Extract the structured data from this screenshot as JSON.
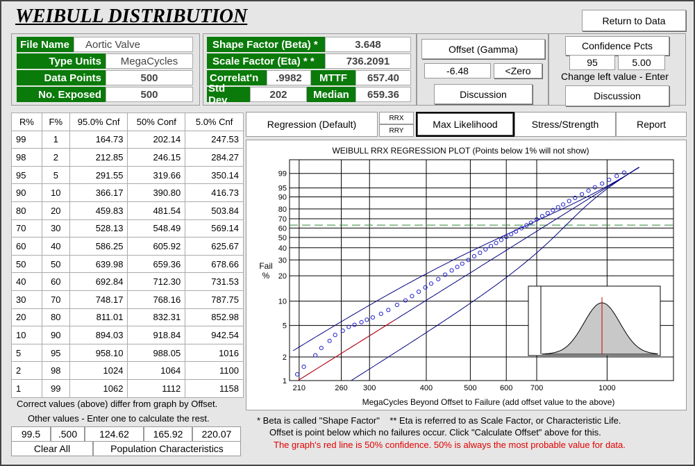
{
  "app": {
    "title": "WEIBULL DISTRIBUTION",
    "return_button": "Return to Data"
  },
  "info": {
    "file_name_label": "File Name",
    "file_name": "Aortic Valve",
    "type_units_label": "Type Units",
    "type_units": "MegaCycles",
    "data_points_label": "Data Points",
    "data_points": "500",
    "no_exposed_label": "No. Exposed",
    "no_exposed": "500"
  },
  "params": {
    "shape_label": "Shape Factor (Beta) *",
    "shape": "3.648",
    "scale_label": "Scale Factor (Eta) * *",
    "scale": "736.2091",
    "correl_label": "Correlat'n",
    "correl": ".9982",
    "mttf_label": "MTTF",
    "mttf": "657.40",
    "stddev_label": "Std Dev",
    "stddev": "202",
    "median_label": "Median",
    "median": "659.36"
  },
  "offset": {
    "button": "Offset (Gamma)",
    "value": "-6.48",
    "zero_button": "<Zero",
    "discussion_button": "Discussion"
  },
  "confidence": {
    "button": "Confidence Pcts",
    "left": "95",
    "right": "5.00",
    "hint": "Change left value - Enter",
    "discussion_button": "Discussion"
  },
  "tabs": {
    "regression": "Regression (Default)",
    "rrx": "RRX",
    "rry": "RRY",
    "max_likelihood": "Max Likelihood",
    "stress": "Stress/Strength",
    "report": "Report"
  },
  "table": {
    "headers": [
      "R%",
      "F%",
      "95.0% Cnf",
      "50% Conf",
      "5.0% Cnf"
    ],
    "rows": [
      [
        "99",
        "1",
        "164.73",
        "202.14",
        "247.53"
      ],
      [
        "98",
        "2",
        "212.85",
        "246.15",
        "284.27"
      ],
      [
        "95",
        "5",
        "291.55",
        "319.66",
        "350.14"
      ],
      [
        "90",
        "10",
        "366.17",
        "390.80",
        "416.73"
      ],
      [
        "80",
        "20",
        "459.83",
        "481.54",
        "503.84"
      ],
      [
        "70",
        "30",
        "528.13",
        "548.49",
        "569.14"
      ],
      [
        "60",
        "40",
        "586.25",
        "605.92",
        "625.67"
      ],
      [
        "50",
        "50",
        "639.98",
        "659.36",
        "678.66"
      ],
      [
        "40",
        "60",
        "692.84",
        "712.30",
        "731.53"
      ],
      [
        "30",
        "70",
        "748.17",
        "768.16",
        "787.75"
      ],
      [
        "20",
        "80",
        "811.01",
        "832.31",
        "852.98"
      ],
      [
        "10",
        "90",
        "894.03",
        "918.84",
        "942.54"
      ],
      [
        "5",
        "95",
        "958.10",
        "988.05",
        "1016"
      ],
      [
        "2",
        "98",
        "1024",
        "1064",
        "1100"
      ],
      [
        "1",
        "99",
        "1062",
        "1112",
        "1158"
      ]
    ]
  },
  "bottom_left": {
    "note1": "Correct values (above) differ from graph by Offset.",
    "note2": "Other values - Enter one to calculate the rest.",
    "calc_values": [
      "99.5",
      ".500",
      "124.62",
      "165.92",
      "220.07"
    ],
    "clear_button": "Clear All",
    "population_button": "Population Characteristics"
  },
  "notes": {
    "line1": "* Beta is called \"Shape Factor\"    ** Eta is referred to as Scale Factor, or Characteristic Life.",
    "line2": "Offset is point below which no failures occur.  Click \"Calculate Offset\" above for this.",
    "line3": "The graph's red line is 50% confidence.  50% is always the most probable value for data.",
    "line3_color": "#e00000"
  },
  "chart_data": {
    "type": "scatter",
    "title": "WEIBULL RRX REGRESSION PLOT (Points below 1% will not show)",
    "xlabel": "MegaCycles Beyond Offset to Failure (add offset value to the above)",
    "ylabel": "Fail %",
    "x_scale": "log",
    "y_scale": "weibull",
    "xlim": [
      200,
      1400
    ],
    "ylim": [
      1,
      99.9
    ],
    "x_tick_labels": [
      "210",
      "260",
      "300",
      "400",
      "500",
      "600",
      "700",
      "1000"
    ],
    "y_tick_labels": [
      "1",
      "2",
      "5",
      "10",
      "20",
      "30",
      "40",
      "50",
      "60",
      "70",
      "80",
      "90",
      "95",
      "99"
    ],
    "beta": 3.648,
    "eta": 736.2091,
    "mean_line_percent": 63.2,
    "series": [
      {
        "name": "",
        "color": "#2222cc",
        "x": [
          208,
          215,
          228,
          235,
          245,
          252,
          262,
          270,
          278,
          288,
          296,
          305,
          318,
          330,
          345,
          360,
          372,
          385,
          398,
          410,
          425,
          440,
          455,
          468,
          480,
          495,
          510,
          525,
          540,
          555,
          570,
          585,
          600,
          615,
          630,
          648,
          665,
          680,
          700,
          720,
          740,
          760,
          780,
          800,
          825,
          850,
          880,
          910,
          940,
          975,
          1010,
          1050,
          1090
        ],
        "y": [
          1.2,
          1.5,
          2.1,
          2.6,
          3.2,
          3.8,
          4.3,
          4.8,
          5.1,
          5.5,
          5.9,
          6.3,
          7.0,
          7.8,
          9.0,
          10.2,
          11.5,
          13.0,
          14.6,
          16.2,
          18.3,
          20.6,
          23.0,
          25.2,
          27.3,
          30.0,
          32.8,
          35.6,
          38.6,
          41.6,
          44.5,
          47.5,
          50.5,
          53.4,
          56.3,
          59.8,
          63.0,
          65.8,
          69.4,
          72.8,
          76.0,
          78.9,
          81.6,
          84.1,
          86.9,
          89.3,
          91.7,
          93.7,
          95.3,
          96.7,
          97.8,
          98.6,
          99.1
        ]
      }
    ],
    "fit_line_color": "#000080",
    "conf50_color": "#cc0000",
    "inset": {
      "type": "normal-curve",
      "fill": "#c8c8c8",
      "center_line": "#cc0000"
    }
  }
}
